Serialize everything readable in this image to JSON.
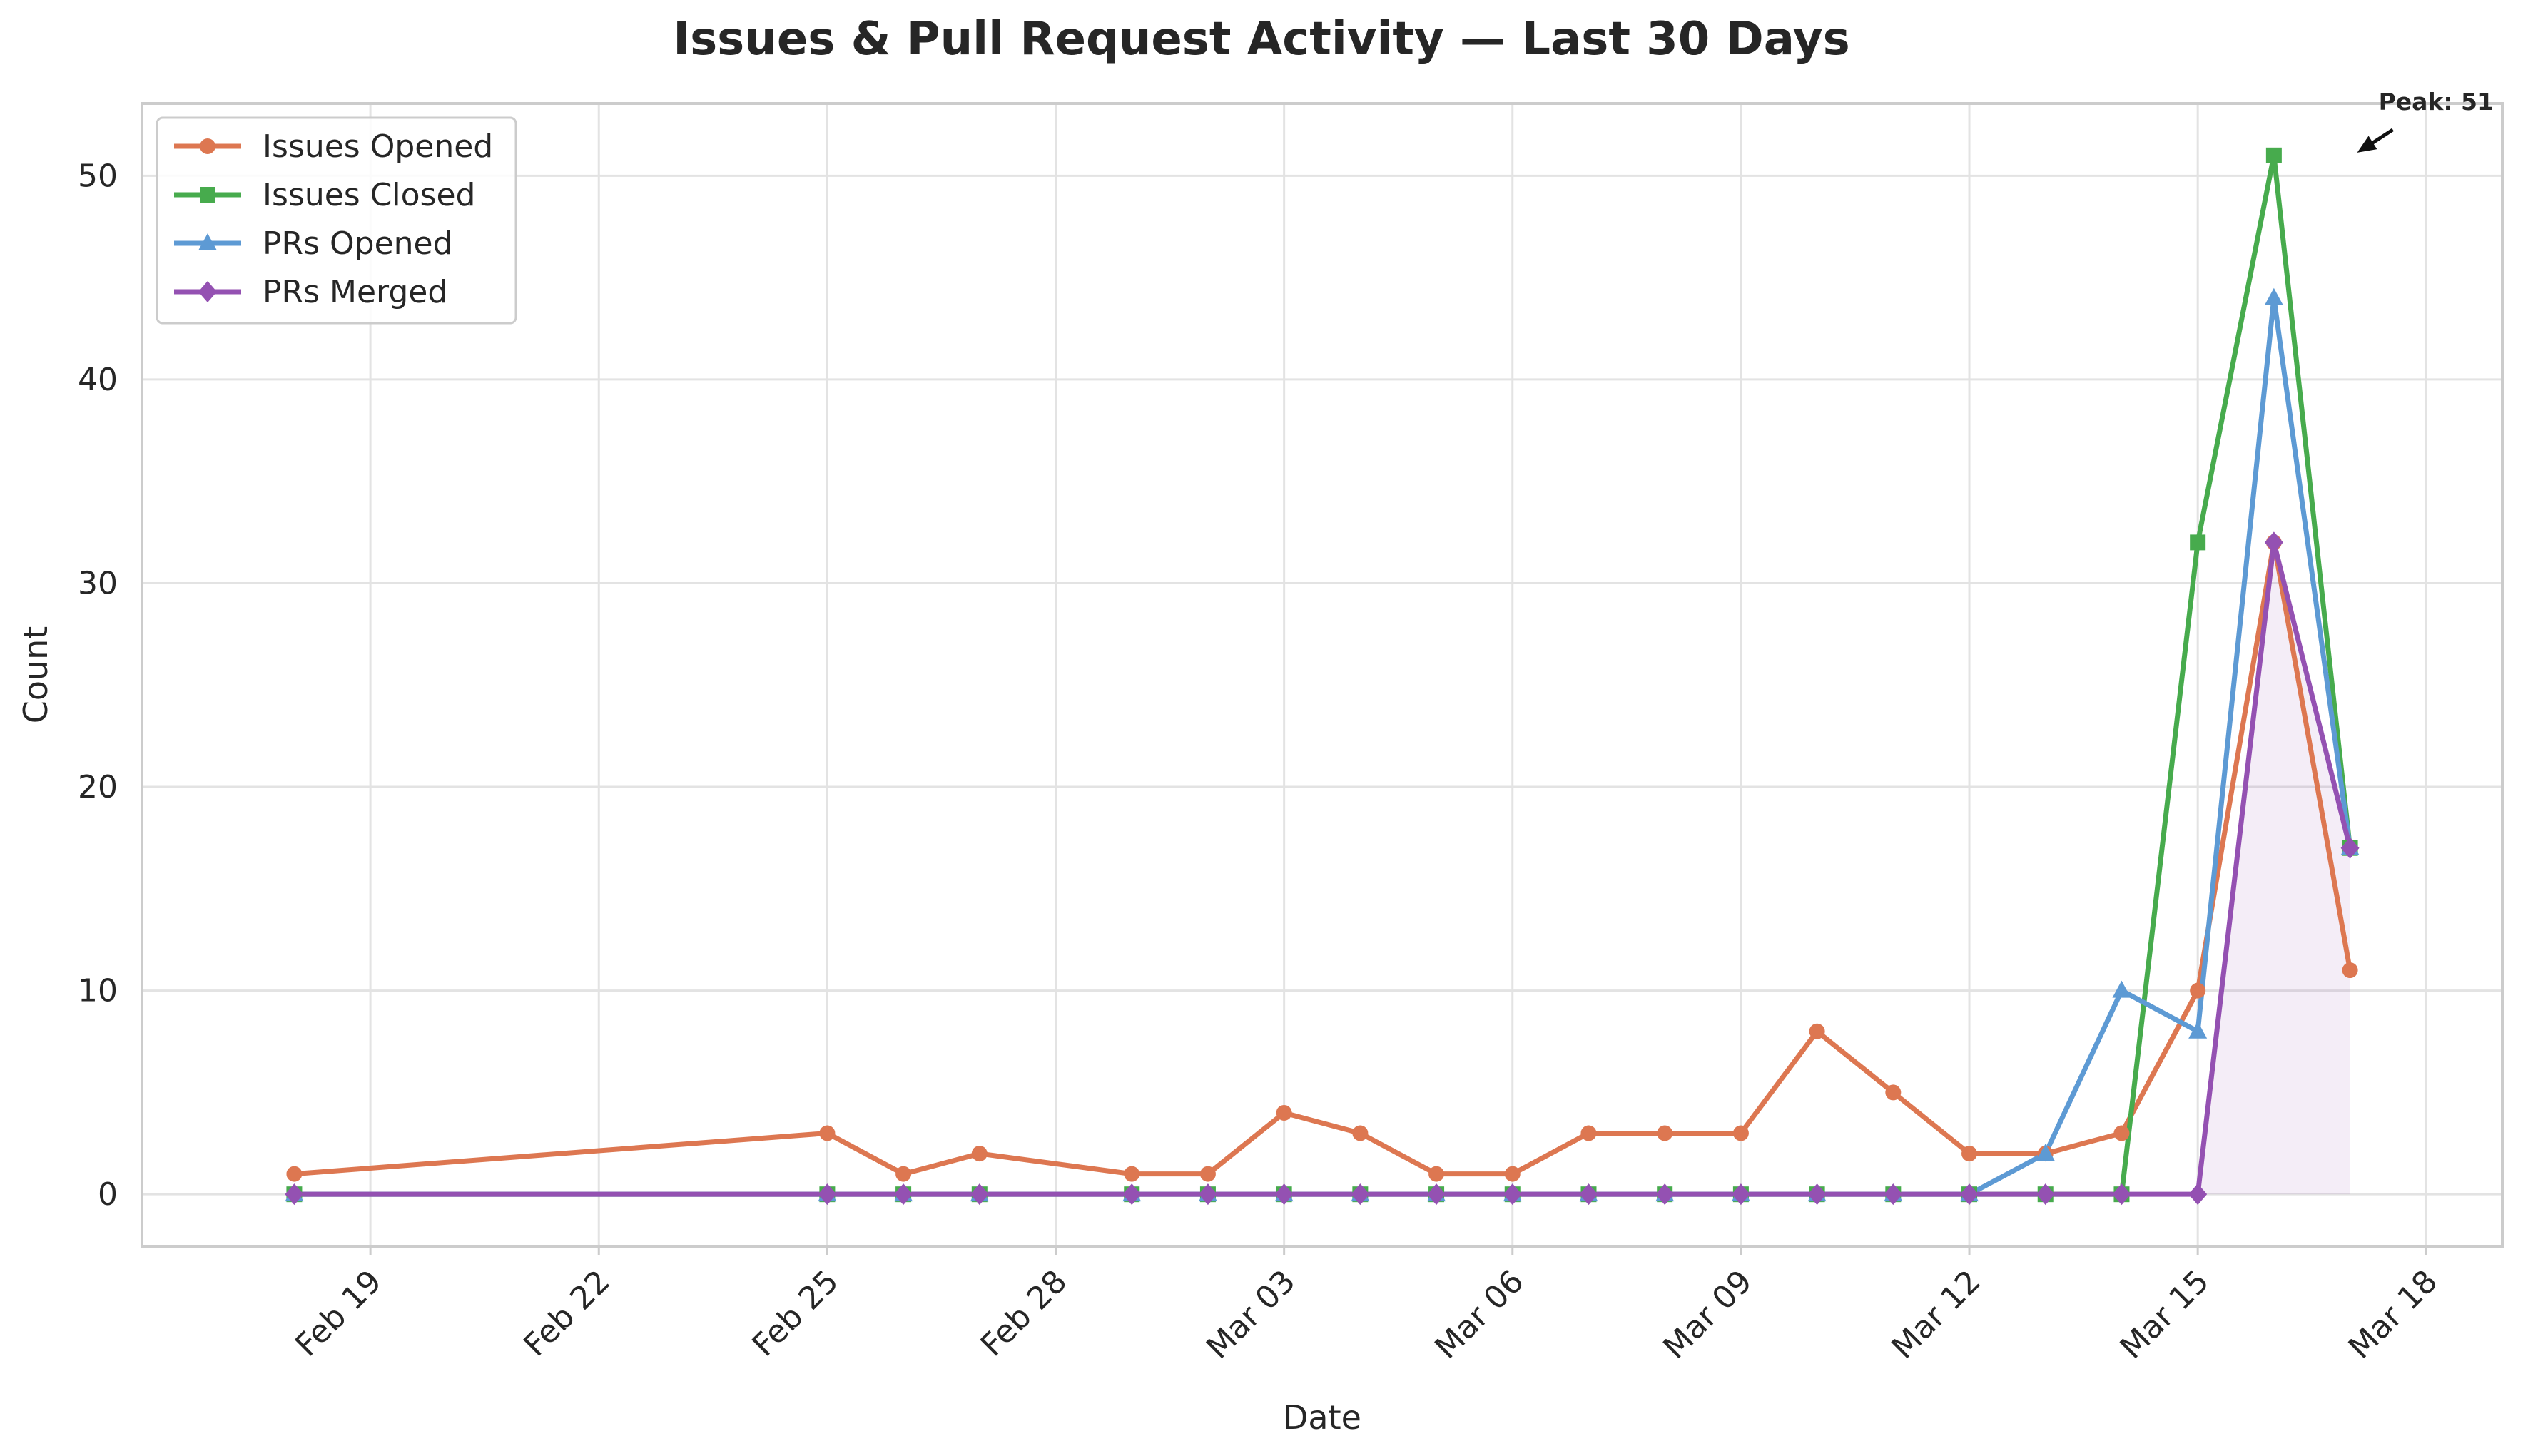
{
  "chart_data": {
    "type": "line",
    "title": "Issues & Pull Request Activity — Last 30 Days",
    "xlabel": "Date",
    "ylabel": "Count",
    "x_ticks": [
      "Feb 19",
      "Feb 22",
      "Feb 25",
      "Feb 28",
      "Mar 03",
      "Mar 06",
      "Mar 09",
      "Mar 12",
      "Mar 15",
      "Mar 18"
    ],
    "y_ticks": [
      0,
      10,
      20,
      30,
      40,
      50
    ],
    "ylim": [
      -2.55,
      53.55
    ],
    "xlim": [
      "2024-02-16",
      "2024-03-18"
    ],
    "grid": true,
    "legend_position": "top-left",
    "annotation": {
      "text": "Peak: 51",
      "x": "2024-03-16",
      "y": 51
    },
    "series": [
      {
        "name": "Issues Opened",
        "color": "#dd7751",
        "marker": "circle",
        "points": [
          [
            "2024-02-18",
            1
          ],
          [
            "2024-02-25",
            3
          ],
          [
            "2024-02-26",
            1
          ],
          [
            "2024-02-27",
            2
          ],
          [
            "2024-02-29",
            1
          ],
          [
            "2024-03-01",
            1
          ],
          [
            "2024-03-02",
            4
          ],
          [
            "2024-03-03",
            3
          ],
          [
            "2024-03-04",
            1
          ],
          [
            "2024-03-05",
            1
          ],
          [
            "2024-03-06",
            3
          ],
          [
            "2024-03-07",
            3
          ],
          [
            "2024-03-08",
            3
          ],
          [
            "2024-03-09",
            8
          ],
          [
            "2024-03-10",
            5
          ],
          [
            "2024-03-11",
            2
          ],
          [
            "2024-03-12",
            2
          ],
          [
            "2024-03-13",
            3
          ],
          [
            "2024-03-14",
            10
          ],
          [
            "2024-03-15",
            32
          ],
          [
            "2024-03-16",
            11
          ]
        ]
      },
      {
        "name": "Issues Closed",
        "color": "#47ab4d",
        "marker": "square",
        "points": [
          [
            "2024-02-18",
            0
          ],
          [
            "2024-02-25",
            0
          ],
          [
            "2024-02-26",
            0
          ],
          [
            "2024-02-27",
            0
          ],
          [
            "2024-02-29",
            0
          ],
          [
            "2024-03-01",
            0
          ],
          [
            "2024-03-02",
            0
          ],
          [
            "2024-03-03",
            0
          ],
          [
            "2024-03-04",
            0
          ],
          [
            "2024-03-05",
            0
          ],
          [
            "2024-03-06",
            0
          ],
          [
            "2024-03-07",
            0
          ],
          [
            "2024-03-08",
            0
          ],
          [
            "2024-03-09",
            0
          ],
          [
            "2024-03-10",
            0
          ],
          [
            "2024-03-11",
            0
          ],
          [
            "2024-03-12",
            0
          ],
          [
            "2024-03-13",
            0
          ],
          [
            "2024-03-14",
            32
          ],
          [
            "2024-03-15",
            51
          ],
          [
            "2024-03-16",
            17
          ]
        ]
      },
      {
        "name": "PRs Opened",
        "color": "#5d9ad4",
        "marker": "triangle",
        "points": [
          [
            "2024-02-18",
            0
          ],
          [
            "2024-02-25",
            0
          ],
          [
            "2024-02-26",
            0
          ],
          [
            "2024-02-27",
            0
          ],
          [
            "2024-02-29",
            0
          ],
          [
            "2024-03-01",
            0
          ],
          [
            "2024-03-02",
            0
          ],
          [
            "2024-03-03",
            0
          ],
          [
            "2024-03-04",
            0
          ],
          [
            "2024-03-05",
            0
          ],
          [
            "2024-03-06",
            0
          ],
          [
            "2024-03-07",
            0
          ],
          [
            "2024-03-08",
            0
          ],
          [
            "2024-03-09",
            0
          ],
          [
            "2024-03-10",
            0
          ],
          [
            "2024-03-11",
            0
          ],
          [
            "2024-03-12",
            2
          ],
          [
            "2024-03-13",
            10
          ],
          [
            "2024-03-14",
            8
          ],
          [
            "2024-03-15",
            44
          ],
          [
            "2024-03-16",
            17
          ]
        ]
      },
      {
        "name": "PRs Merged",
        "color": "#9451b2",
        "marker": "diamond",
        "fill_under": true,
        "points": [
          [
            "2024-02-18",
            0
          ],
          [
            "2024-02-25",
            0
          ],
          [
            "2024-02-26",
            0
          ],
          [
            "2024-02-27",
            0
          ],
          [
            "2024-02-29",
            0
          ],
          [
            "2024-03-01",
            0
          ],
          [
            "2024-03-02",
            0
          ],
          [
            "2024-03-03",
            0
          ],
          [
            "2024-03-04",
            0
          ],
          [
            "2024-03-05",
            0
          ],
          [
            "2024-03-06",
            0
          ],
          [
            "2024-03-07",
            0
          ],
          [
            "2024-03-08",
            0
          ],
          [
            "2024-03-09",
            0
          ],
          [
            "2024-03-10",
            0
          ],
          [
            "2024-03-11",
            0
          ],
          [
            "2024-03-12",
            0
          ],
          [
            "2024-03-13",
            0
          ],
          [
            "2024-03-14",
            0
          ],
          [
            "2024-03-15",
            32
          ],
          [
            "2024-03-16",
            17
          ]
        ]
      }
    ]
  }
}
